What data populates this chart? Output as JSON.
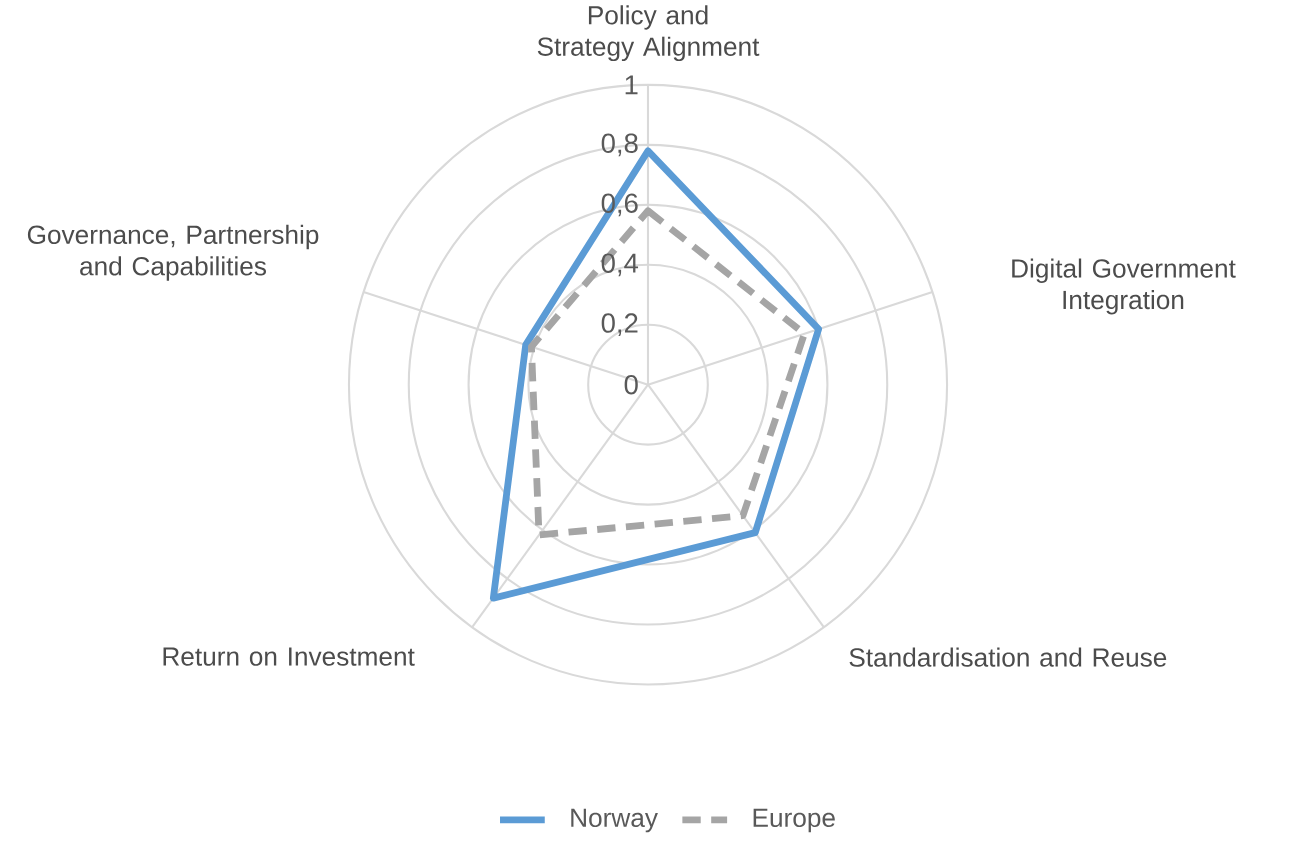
{
  "chart_data": {
    "type": "radar",
    "categories": [
      "Policy and Strategy Alignment",
      "Digital Government Integration",
      "Standardisation and Reuse",
      "Return on Investment",
      "Governance, Partnership and Capabilities"
    ],
    "series": [
      {
        "name": "Norway",
        "color": "#5b9bd5",
        "line_style": "solid",
        "values": [
          0.78,
          0.6,
          0.61,
          0.88,
          0.43
        ]
      },
      {
        "name": "Europe",
        "color": "#a5a5a5",
        "line_style": "dashed",
        "values": [
          0.58,
          0.55,
          0.54,
          0.62,
          0.41
        ]
      }
    ],
    "ylim": [
      0,
      1
    ],
    "yticks": [
      0,
      {
        "value": 0.2,
        "label": "0,2"
      },
      {
        "value": 0.4,
        "label": "0,4"
      },
      {
        "value": 0.6,
        "label": "0,6"
      },
      {
        "value": 0.8,
        "label": "0,8"
      },
      1
    ],
    "grid": true,
    "legend": "bottom"
  }
}
